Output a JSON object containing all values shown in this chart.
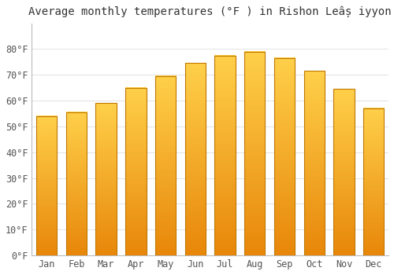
{
  "title": "Average monthly temperatures (°F ) in Rishon Leâș iyyon",
  "months": [
    "Jan",
    "Feb",
    "Mar",
    "Apr",
    "May",
    "Jun",
    "Jul",
    "Aug",
    "Sep",
    "Oct",
    "Nov",
    "Dec"
  ],
  "values": [
    54,
    55.5,
    59,
    65,
    69.5,
    74.5,
    77.5,
    79,
    76.5,
    71.5,
    64.5,
    57
  ],
  "bar_color_top": "#FFD04A",
  "bar_color_bottom": "#E8870A",
  "bar_color_edge": "#C07800",
  "background_color": "#FFFFFF",
  "plot_bg_color": "#FFFFFF",
  "grid_color": "#DDDDDD",
  "ylim": [
    0,
    90
  ],
  "yticks": [
    0,
    10,
    20,
    30,
    40,
    50,
    60,
    70,
    80
  ],
  "ytick_labels": [
    "0°F",
    "10°F",
    "20°F",
    "30°F",
    "40°F",
    "50°F",
    "60°F",
    "70°F",
    "80°F"
  ],
  "title_fontsize": 10,
  "tick_fontsize": 8.5,
  "font_family": "monospace",
  "bar_width": 0.7
}
